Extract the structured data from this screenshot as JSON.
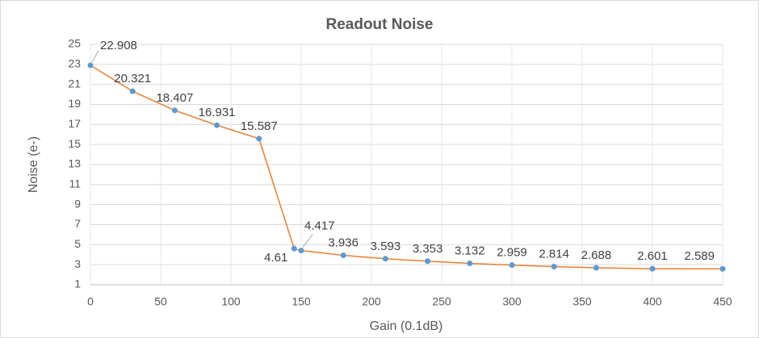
{
  "chart_data": {
    "type": "line",
    "title": "Readout Noise",
    "x_label": "Gain (0.1dB)",
    "y_label": "Noise (e-)",
    "x": [
      0,
      30,
      60,
      90,
      120,
      145,
      150,
      180,
      210,
      240,
      270,
      300,
      330,
      360,
      400,
      450
    ],
    "series": [
      {
        "name": "Readout Noise",
        "line_color": "#ed7d31",
        "marker_color": "#5b9bd5",
        "values": [
          22.908,
          20.321,
          18.407,
          16.931,
          15.587,
          4.61,
          4.417,
          3.936,
          3.593,
          3.353,
          3.132,
          2.959,
          2.814,
          2.688,
          2.601,
          2.589
        ]
      }
    ],
    "xlim": [
      0,
      450
    ],
    "xticks": [
      0,
      50,
      100,
      150,
      200,
      250,
      300,
      350,
      400,
      450
    ],
    "ylim": [
      1,
      25
    ],
    "yticks": [
      1,
      3,
      5,
      7,
      9,
      11,
      13,
      15,
      17,
      19,
      21,
      23,
      25
    ],
    "grid": true,
    "data_labels": true
  }
}
